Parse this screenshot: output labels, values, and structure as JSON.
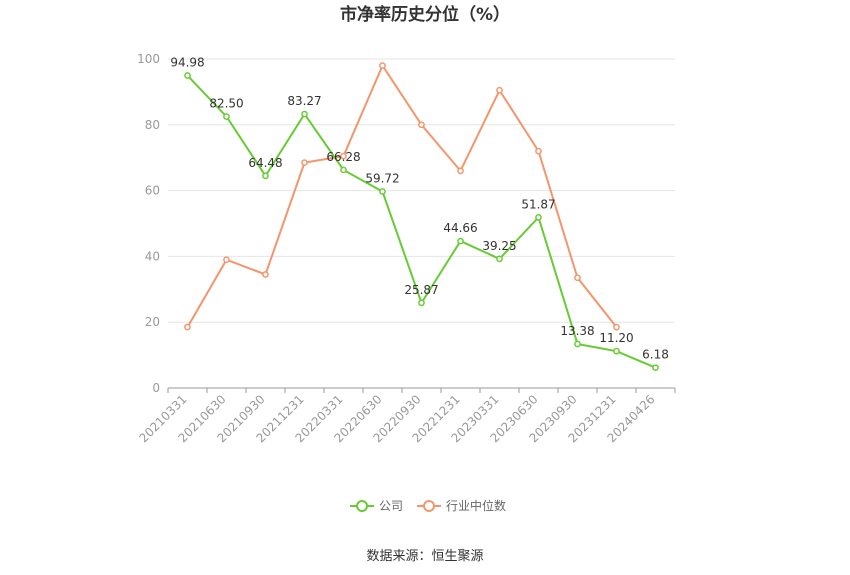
{
  "chart_data": {
    "type": "line",
    "title": "市净率历史分位（%）",
    "categories": [
      "20210331",
      "20210630",
      "20210930",
      "20211231",
      "20220331",
      "20220630",
      "20220930",
      "20221231",
      "20230331",
      "20230630",
      "20230930",
      "20231231",
      "20240426"
    ],
    "ylim": [
      0,
      100
    ],
    "yticks": [
      0,
      20,
      40,
      60,
      80,
      100
    ],
    "grid": true,
    "legend_position": "bottom",
    "series": [
      {
        "name": "公司",
        "color": "#66cc33",
        "values": [
          94.98,
          82.5,
          64.48,
          83.27,
          66.28,
          59.72,
          25.87,
          44.66,
          39.25,
          51.87,
          13.38,
          11.2,
          6.18
        ],
        "labels": [
          "94.98",
          "82.50",
          "64.48",
          "83.27",
          "66.28",
          "59.72",
          "25.87",
          "44.66",
          "39.25",
          "51.87",
          "13.38",
          "11.20",
          "6.18"
        ]
      },
      {
        "name": "行业中位数",
        "color": "#f4956b",
        "values": [
          18.5,
          39.0,
          34.5,
          68.5,
          70.5,
          98.0,
          80.0,
          66.0,
          90.5,
          72.0,
          33.5,
          18.5,
          null
        ]
      }
    ]
  },
  "source_text": "数据来源：恒生聚源"
}
